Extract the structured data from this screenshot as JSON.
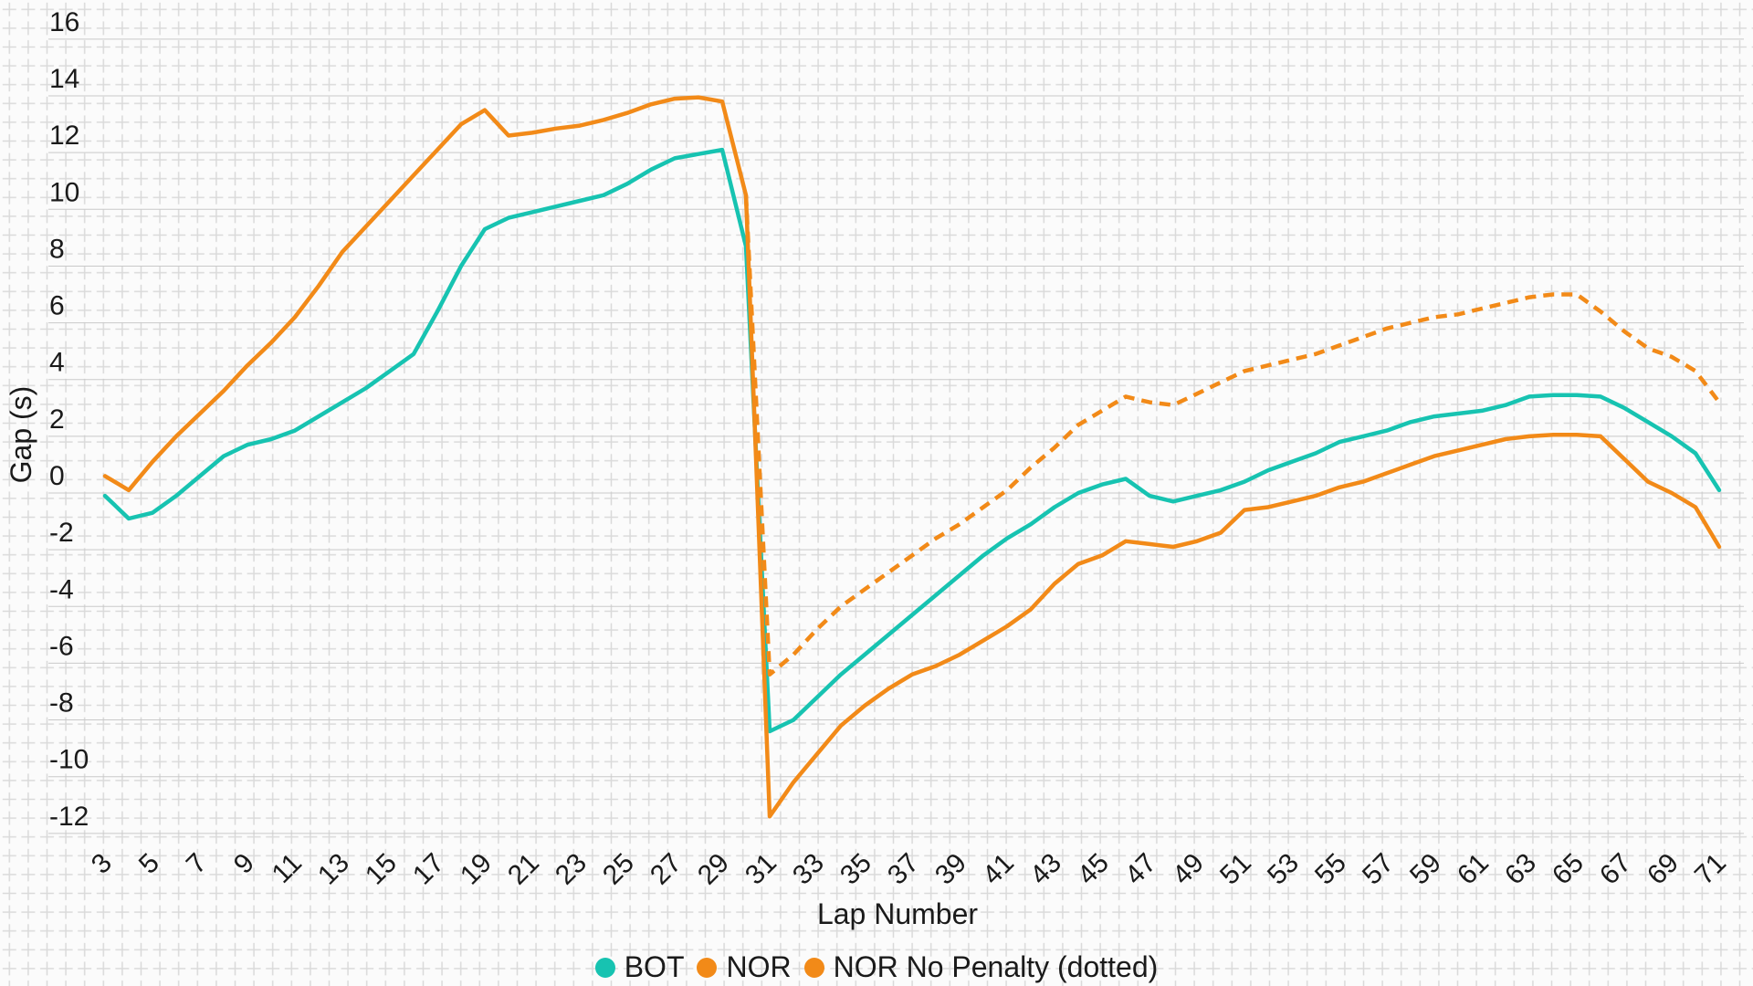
{
  "chart_data": {
    "type": "line",
    "title": "",
    "xlabel": "Lap Number",
    "ylabel": "Gap (s)",
    "grid": "on",
    "legend_position": "bottom-center",
    "xlim": [
      3,
      71
    ],
    "ylim": [
      -12,
      16
    ],
    "y_ticks": [
      16,
      14,
      12,
      10,
      8,
      6,
      4,
      2,
      0,
      -2,
      -4,
      -6,
      -8,
      -10,
      -12
    ],
    "x_ticks": [
      3,
      5,
      7,
      9,
      11,
      13,
      15,
      17,
      19,
      21,
      23,
      25,
      27,
      29,
      31,
      33,
      35,
      37,
      39,
      41,
      43,
      45,
      47,
      49,
      51,
      53,
      55,
      57,
      59,
      61,
      63,
      65,
      67,
      69,
      71
    ],
    "x": [
      3,
      4,
      5,
      6,
      7,
      8,
      9,
      10,
      11,
      12,
      13,
      14,
      15,
      16,
      17,
      18,
      19,
      20,
      21,
      22,
      23,
      24,
      25,
      26,
      27,
      28,
      29,
      30,
      31,
      32,
      33,
      34,
      35,
      36,
      37,
      38,
      39,
      40,
      41,
      42,
      43,
      44,
      45,
      46,
      47,
      48,
      49,
      50,
      51,
      52,
      53,
      54,
      55,
      56,
      57,
      58,
      59,
      60,
      61,
      62,
      63,
      64,
      65,
      66,
      67,
      68,
      69,
      70,
      71
    ],
    "series": [
      {
        "name": "BOT",
        "color": "#17c3b1",
        "style": "solid",
        "values": [
          -0.1,
          -0.9,
          -0.7,
          -0.1,
          0.6,
          1.3,
          1.7,
          1.9,
          2.2,
          2.7,
          3.2,
          3.7,
          4.3,
          4.9,
          6.4,
          8.0,
          9.3,
          9.7,
          9.9,
          10.1,
          10.3,
          10.5,
          10.9,
          11.4,
          11.8,
          11.95,
          12.1,
          8.7,
          -8.4,
          -8.0,
          -7.2,
          -6.4,
          -5.7,
          -5.0,
          -4.3,
          -3.6,
          -2.9,
          -2.2,
          -1.6,
          -1.1,
          -0.5,
          0.0,
          0.3,
          0.5,
          -0.1,
          -0.3,
          -0.1,
          0.1,
          0.4,
          0.8,
          1.1,
          1.4,
          1.8,
          2.0,
          2.2,
          2.5,
          2.7,
          2.8,
          2.9,
          3.1,
          3.4,
          3.45,
          3.45,
          3.4,
          3.0,
          2.5,
          2.0,
          1.4,
          0.1
        ]
      },
      {
        "name": "NOR",
        "color": "#f28a18",
        "style": "solid",
        "values": [
          0.6,
          0.1,
          1.1,
          2.0,
          2.8,
          3.6,
          4.5,
          5.3,
          6.2,
          7.3,
          8.5,
          9.4,
          10.3,
          11.2,
          12.1,
          13.0,
          13.5,
          12.6,
          12.7,
          12.85,
          12.95,
          13.15,
          13.4,
          13.7,
          13.9,
          13.95,
          13.8,
          10.5,
          -11.4,
          -10.2,
          -9.2,
          -8.2,
          -7.5,
          -6.9,
          -6.4,
          -6.1,
          -5.7,
          -5.2,
          -4.7,
          -4.1,
          -3.2,
          -2.5,
          -2.2,
          -1.7,
          -1.8,
          -1.9,
          -1.7,
          -1.4,
          -0.6,
          -0.5,
          -0.3,
          -0.1,
          0.2,
          0.4,
          0.7,
          1.0,
          1.3,
          1.5,
          1.7,
          1.9,
          2.0,
          2.05,
          2.05,
          2.0,
          1.2,
          0.4,
          0.0,
          -0.5,
          -1.9
        ]
      },
      {
        "name": "NOR No Penalty (dotted)",
        "color": "#f28a18",
        "style": "dotted",
        "values": [
          null,
          null,
          null,
          null,
          null,
          null,
          null,
          null,
          null,
          null,
          null,
          null,
          null,
          null,
          null,
          null,
          null,
          null,
          null,
          null,
          null,
          null,
          null,
          null,
          null,
          null,
          null,
          10.5,
          -6.4,
          -5.7,
          -4.8,
          -4.0,
          -3.4,
          -2.8,
          -2.2,
          -1.6,
          -1.1,
          -0.5,
          0.1,
          0.9,
          1.6,
          2.4,
          2.9,
          3.4,
          3.2,
          3.1,
          3.5,
          3.9,
          4.3,
          4.5,
          4.7,
          4.9,
          5.2,
          5.5,
          5.8,
          6.0,
          6.2,
          6.3,
          6.5,
          6.7,
          6.9,
          7.0,
          7.0,
          6.4,
          5.7,
          5.1,
          4.8,
          4.3,
          3.2
        ]
      }
    ],
    "legend": [
      {
        "label": "BOT",
        "color": "#17c3b1",
        "style": "solid"
      },
      {
        "label": "NOR",
        "color": "#f28a18",
        "style": "solid"
      },
      {
        "label": "NOR No Penalty (dotted)",
        "color": "#f28a18",
        "style": "dotted"
      }
    ]
  },
  "theme": {
    "background": "#fbfbfb",
    "paper_cross_color": "#dadada",
    "gridline_color": "#c9c9c9",
    "text_color": "#1a1a1a"
  }
}
